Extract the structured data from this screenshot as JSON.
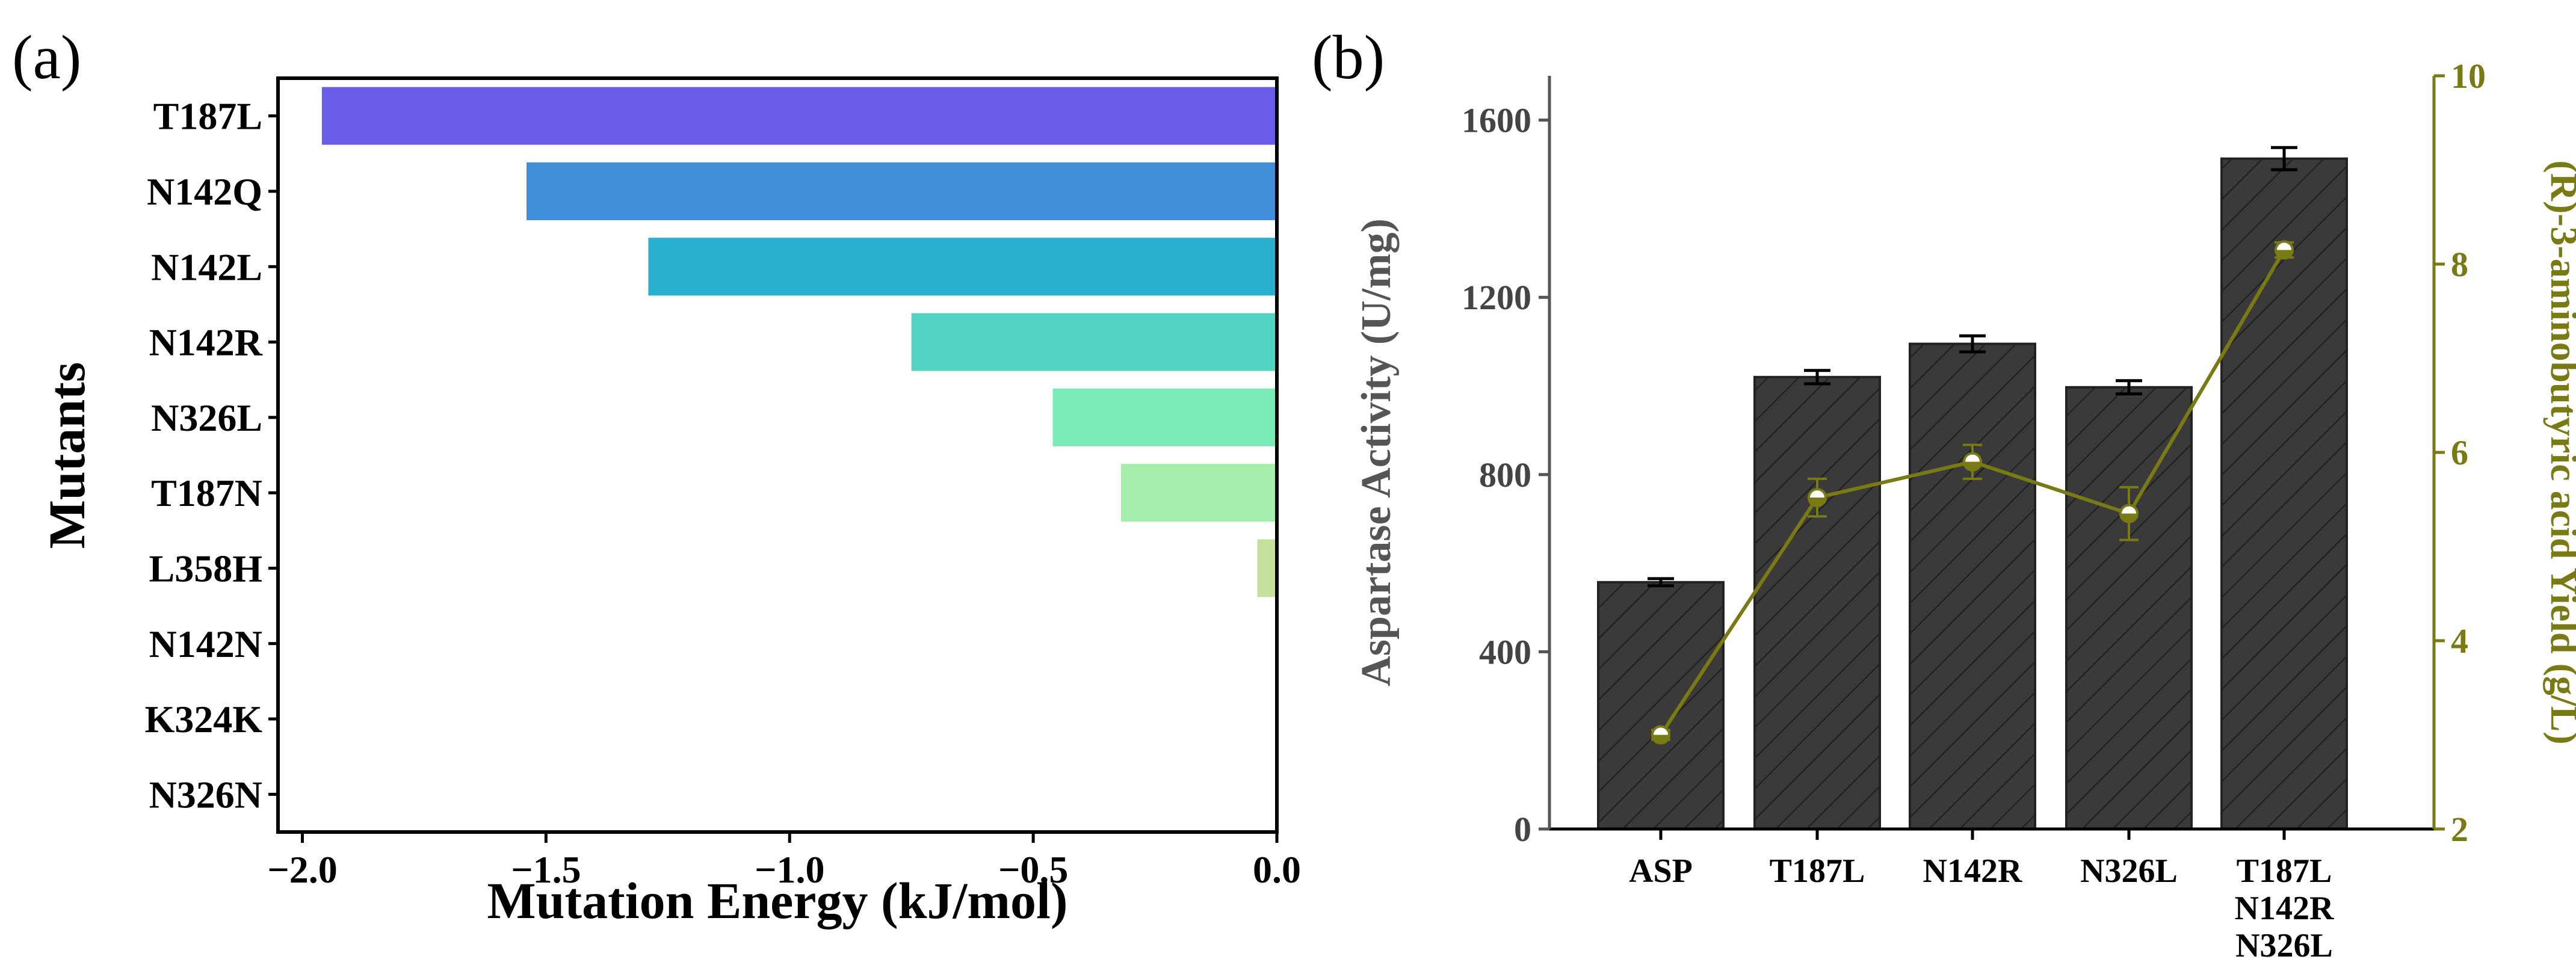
{
  "chart_data": [
    {
      "type": "bar",
      "orientation": "horizontal",
      "panel_label": "(a)",
      "categories": [
        "T187L",
        "N142Q",
        "N142L",
        "N142R",
        "N326L",
        "T187N",
        "L358H",
        "N142N",
        "K324K",
        "N326N"
      ],
      "values": [
        -1.96,
        -1.54,
        -1.29,
        -0.75,
        -0.46,
        -0.32,
        -0.04,
        0.0,
        0.0,
        0.0
      ],
      "bar_colors": [
        "#6a5ee8",
        "#418ed9",
        "#29b0ce",
        "#53d3c4",
        "#7aeab7",
        "#a4efab",
        "#c4e09a",
        "#d0e0a0",
        "#d0e0a0",
        "#d0e0a0"
      ],
      "xlabel": "Mutation Energy (kJ/mol)",
      "ylabel": "Mutants",
      "xlim": [
        -2.05,
        0.0
      ],
      "xticks": [
        -2.0,
        -1.5,
        -1.0,
        -0.5,
        0.0
      ],
      "xtick_labels": [
        "−2.0",
        "−1.5",
        "−1.0",
        "−0.5",
        "0.0"
      ]
    },
    {
      "type": "bar+line",
      "panel_label": "(b)",
      "categories": [
        [
          "ASP"
        ],
        [
          "T187L"
        ],
        [
          "N142R"
        ],
        [
          "N326L"
        ],
        [
          "T187L",
          "N142R",
          "N326L"
        ]
      ],
      "bars": {
        "name": "Aspartase Activity",
        "values": [
          557,
          1020,
          1095,
          997,
          1513
        ],
        "errors": [
          8,
          15,
          18,
          15,
          25
        ],
        "color": "#3a3a3a"
      },
      "line": {
        "name": "(R)-3-aminobutyric acid Yield",
        "values": [
          3.0,
          5.52,
          5.9,
          5.35,
          8.15
        ],
        "errors": [
          0.05,
          0.2,
          0.18,
          0.28,
          0.08
        ],
        "color": "#7a7a14"
      },
      "ylabel": "Aspartase Activity (U/mg)",
      "ylim": [
        0,
        1700
      ],
      "yticks": [
        0,
        400,
        800,
        1200,
        1600
      ],
      "ylabel_right": "(R)-3-aminobutyric acid Yield (g/L)",
      "ylim_right": [
        2,
        10
      ],
      "yticks_right": [
        2,
        4,
        6,
        8,
        10
      ]
    }
  ]
}
